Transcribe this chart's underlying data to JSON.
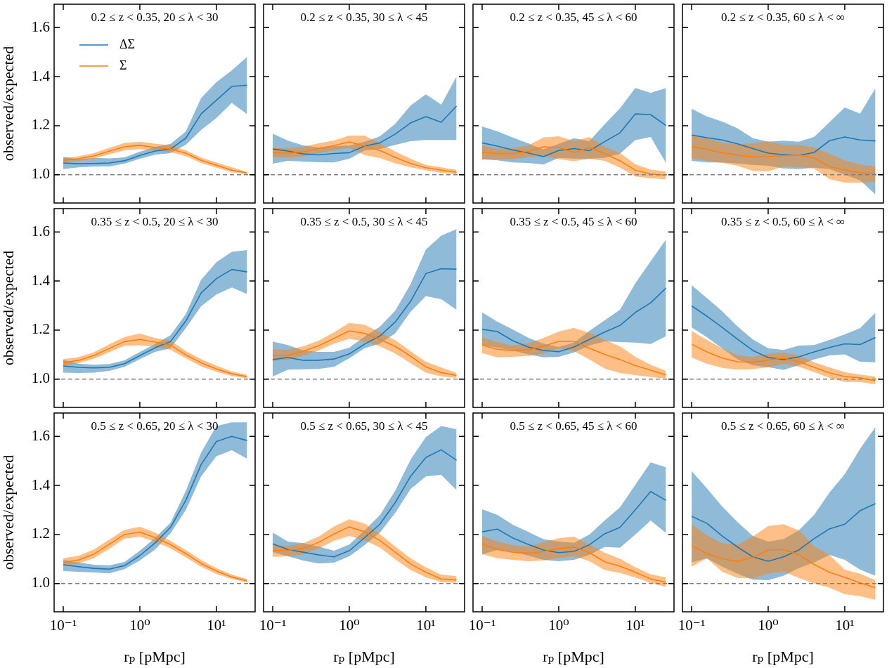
{
  "chart_data": [
    {
      "type": "line",
      "title": "0.2 ≤ z < 0.35, 20 ≤ λ < 30",
      "ylabel": "observed/expected",
      "tick_labels": "y",
      "legend": "top left",
      "log": "x",
      "x": [
        0.1,
        0.158,
        0.251,
        0.398,
        0.631,
        1,
        1.585,
        2.512,
        3.981,
        6.31,
        10,
        15.85,
        25.12
      ],
      "xlim": [
        0.076,
        32
      ],
      "ylim": [
        0.885,
        1.695
      ],
      "xticks": [
        {
          "value": 0.1,
          "label": null
        },
        {
          "value": 1,
          "label": null
        },
        {
          "value": 10,
          "label": null
        }
      ],
      "yticks": [
        {
          "value": 1,
          "label": "1.0"
        },
        {
          "value": 1.2,
          "label": "1.2"
        },
        {
          "value": 1.4,
          "label": "1.4"
        },
        {
          "value": 1.6,
          "label": "1.6"
        }
      ],
      "ref_lines": [
        {
          "axis": "y",
          "value": 1,
          "color": "#808080",
          "line_style": "dashed"
        }
      ],
      "series": [
        {
          "name": "ΔΣ",
          "color": "#1f77b4",
          "values": [
            1.048,
            1.045,
            1.046,
            1.048,
            1.057,
            1.079,
            1.097,
            1.105,
            1.149,
            1.248,
            1.304,
            1.36,
            1.365
          ],
          "lower": [
            1.023,
            1.03,
            1.034,
            1.034,
            1.045,
            1.065,
            1.082,
            1.088,
            1.122,
            1.183,
            1.231,
            1.293,
            1.247
          ],
          "upper": [
            1.073,
            1.063,
            1.069,
            1.067,
            1.071,
            1.094,
            1.113,
            1.126,
            1.176,
            1.313,
            1.377,
            1.425,
            1.48
          ]
        },
        {
          "name": "Σ",
          "color": "#ff7f0e",
          "values": [
            1.059,
            1.065,
            1.077,
            1.096,
            1.114,
            1.12,
            1.111,
            1.105,
            1.088,
            1.059,
            1.039,
            1.019,
            1.007
          ],
          "lower": [
            1.05,
            1.056,
            1.066,
            1.083,
            1.1,
            1.105,
            1.098,
            1.092,
            1.076,
            1.048,
            1.029,
            1.01,
            1.003
          ],
          "upper": [
            1.068,
            1.075,
            1.088,
            1.11,
            1.13,
            1.135,
            1.127,
            1.12,
            1.1,
            1.07,
            1.05,
            1.03,
            1.012
          ]
        }
      ]
    },
    {
      "type": "line",
      "title": "0.2 ≤ z < 0.35, 30 ≤ λ < 45",
      "tick_labels": false,
      "log": "x",
      "x": [
        0.1,
        0.158,
        0.251,
        0.398,
        0.631,
        1,
        1.585,
        2.512,
        3.981,
        6.31,
        10,
        15.85,
        25.12
      ],
      "xlim": [
        0.076,
        32
      ],
      "ylim": [
        0.885,
        1.695
      ],
      "xticks": [
        {
          "value": 0.1,
          "label": null
        },
        {
          "value": 1,
          "label": null
        },
        {
          "value": 10,
          "label": null
        }
      ],
      "yticks": [
        {
          "value": 1,
          "label": null
        },
        {
          "value": 1.2,
          "label": null
        },
        {
          "value": 1.4,
          "label": null
        },
        {
          "value": 1.6,
          "label": null
        }
      ],
      "ref_lines": [
        {
          "axis": "y",
          "value": 1,
          "color": "#808080",
          "line_style": "dashed"
        }
      ],
      "series": [
        {
          "color": "#1f77b4",
          "values": [
            1.105,
            1.097,
            1.085,
            1.081,
            1.087,
            1.09,
            1.117,
            1.13,
            1.166,
            1.211,
            1.237,
            1.214,
            1.28
          ],
          "lower": [
            1.045,
            1.057,
            1.054,
            1.051,
            1.05,
            1.065,
            1.099,
            1.105,
            1.122,
            1.137,
            1.142,
            1.142,
            1.142
          ],
          "upper": [
            1.168,
            1.139,
            1.12,
            1.111,
            1.117,
            1.119,
            1.134,
            1.157,
            1.208,
            1.282,
            1.328,
            1.286,
            1.4
          ]
        },
        {
          "color": "#ff7f0e",
          "values": [
            1.09,
            1.088,
            1.094,
            1.107,
            1.119,
            1.134,
            1.117,
            1.099,
            1.071,
            1.046,
            1.029,
            1.019,
            1.01
          ],
          "lower": [
            1.07,
            1.07,
            1.075,
            1.088,
            1.1,
            1.11,
            1.08,
            1.068,
            1.047,
            1.03,
            1.018,
            1.008,
            1.002
          ],
          "upper": [
            1.108,
            1.108,
            1.115,
            1.128,
            1.14,
            1.16,
            1.16,
            1.128,
            1.095,
            1.065,
            1.04,
            1.03,
            1.02
          ]
        }
      ]
    },
    {
      "type": "line",
      "title": "0.2 ≤ z < 0.35, 45 ≤ λ < 60",
      "tick_labels": false,
      "log": "x",
      "x": [
        0.1,
        0.158,
        0.251,
        0.398,
        0.631,
        1,
        1.585,
        2.512,
        3.981,
        6.31,
        10,
        15.85,
        25.12
      ],
      "xlim": [
        0.076,
        32
      ],
      "ylim": [
        0.885,
        1.695
      ],
      "xticks": [
        {
          "value": 0.1,
          "label": null
        },
        {
          "value": 1,
          "label": null
        },
        {
          "value": 10,
          "label": null
        }
      ],
      "yticks": [
        {
          "value": 1,
          "label": null
        },
        {
          "value": 1.2,
          "label": null
        },
        {
          "value": 1.4,
          "label": null
        },
        {
          "value": 1.6,
          "label": null
        }
      ],
      "ref_lines": [
        {
          "axis": "y",
          "value": 1,
          "color": "#808080",
          "line_style": "dashed"
        }
      ],
      "series": [
        {
          "color": "#1f77b4",
          "values": [
            1.13,
            1.117,
            1.101,
            1.089,
            1.074,
            1.099,
            1.107,
            1.098,
            1.135,
            1.171,
            1.248,
            1.245,
            1.201
          ],
          "lower": [
            1.063,
            1.059,
            1.05,
            1.048,
            1.042,
            1.069,
            1.066,
            1.065,
            1.069,
            1.086,
            1.141,
            1.154,
            1.048
          ],
          "upper": [
            1.197,
            1.177,
            1.152,
            1.128,
            1.103,
            1.126,
            1.149,
            1.137,
            1.206,
            1.271,
            1.354,
            1.334,
            1.354
          ]
        },
        {
          "color": "#ff7f0e",
          "values": [
            1.091,
            1.087,
            1.087,
            1.095,
            1.114,
            1.111,
            1.091,
            1.111,
            1.086,
            1.057,
            1.019,
            1.003,
            0.998
          ],
          "lower": [
            1.062,
            1.063,
            1.063,
            1.072,
            1.077,
            1.063,
            1.055,
            1.065,
            1.057,
            1.029,
            0.993,
            0.986,
            0.981
          ],
          "upper": [
            1.121,
            1.106,
            1.109,
            1.119,
            1.152,
            1.157,
            1.137,
            1.154,
            1.114,
            1.089,
            1.043,
            1.021,
            1.014
          ]
        }
      ]
    },
    {
      "type": "line",
      "title": "0.2 ≤ z < 0.35, 60 ≤ λ < ∞",
      "tick_labels": false,
      "log": "x",
      "x": [
        0.1,
        0.158,
        0.251,
        0.398,
        0.631,
        1,
        1.585,
        2.512,
        3.981,
        6.31,
        10,
        15.85,
        25.12
      ],
      "xlim": [
        0.076,
        32
      ],
      "ylim": [
        0.885,
        1.695
      ],
      "xticks": [
        {
          "value": 0.1,
          "label": null
        },
        {
          "value": 1,
          "label": null
        },
        {
          "value": 10,
          "label": null
        }
      ],
      "yticks": [
        {
          "value": 1,
          "label": null
        },
        {
          "value": 1.2,
          "label": null
        },
        {
          "value": 1.4,
          "label": null
        },
        {
          "value": 1.6,
          "label": null
        }
      ],
      "ref_lines": [
        {
          "axis": "y",
          "value": 1,
          "color": "#808080",
          "line_style": "dashed"
        }
      ],
      "series": [
        {
          "color": "#1f77b4",
          "values": [
            1.162,
            1.151,
            1.142,
            1.126,
            1.107,
            1.088,
            1.082,
            1.079,
            1.091,
            1.139,
            1.154,
            1.142,
            1.138
          ],
          "lower": [
            1.057,
            1.05,
            1.05,
            1.046,
            1.04,
            1.037,
            1.026,
            1.023,
            1.029,
            1.023,
            1.0,
            0.977,
            0.92
          ],
          "upper": [
            1.269,
            1.238,
            1.217,
            1.189,
            1.149,
            1.135,
            1.139,
            1.135,
            1.154,
            1.214,
            1.274,
            1.249,
            1.352
          ]
        },
        {
          "color": "#ff7f0e",
          "values": [
            1.115,
            1.103,
            1.09,
            1.08,
            1.072,
            1.074,
            1.078,
            1.08,
            1.069,
            1.034,
            1.019,
            1.009,
            1.005
          ],
          "lower": [
            1.066,
            1.057,
            1.048,
            1.037,
            1.016,
            1.014,
            1.034,
            1.031,
            1.025,
            0.982,
            0.968,
            0.968,
            0.971
          ],
          "upper": [
            1.166,
            1.149,
            1.131,
            1.123,
            1.128,
            1.137,
            1.122,
            1.122,
            1.112,
            1.086,
            1.059,
            1.042,
            1.034
          ]
        }
      ]
    },
    {
      "type": "line",
      "title": "0.35 ≤ z < 0.5, 20 ≤ λ < 30",
      "ylabel": "observed/expected",
      "tick_labels": "y",
      "log": "x",
      "x": [
        0.1,
        0.158,
        0.251,
        0.398,
        0.631,
        1,
        1.585,
        2.512,
        3.981,
        6.31,
        10,
        15.85,
        25.12
      ],
      "xlim": [
        0.076,
        32
      ],
      "ylim": [
        0.885,
        1.695
      ],
      "xticks": [
        {
          "value": 0.1,
          "label": null
        },
        {
          "value": 1,
          "label": null
        },
        {
          "value": 10,
          "label": null
        }
      ],
      "yticks": [
        {
          "value": 1,
          "label": "1.0"
        },
        {
          "value": 1.2,
          "label": "1.2"
        },
        {
          "value": 1.4,
          "label": "1.4"
        },
        {
          "value": 1.6,
          "label": "1.6"
        }
      ],
      "ref_lines": [
        {
          "axis": "y",
          "value": 1,
          "color": "#808080",
          "line_style": "dashed"
        }
      ],
      "series": [
        {
          "color": "#1f77b4",
          "values": [
            1.054,
            1.048,
            1.046,
            1.048,
            1.063,
            1.096,
            1.128,
            1.153,
            1.237,
            1.351,
            1.41,
            1.447,
            1.437
          ],
          "lower": [
            1.027,
            1.025,
            1.027,
            1.034,
            1.05,
            1.082,
            1.111,
            1.126,
            1.208,
            1.297,
            1.345,
            1.374,
            1.347
          ],
          "upper": [
            1.079,
            1.063,
            1.059,
            1.062,
            1.077,
            1.111,
            1.143,
            1.179,
            1.265,
            1.405,
            1.477,
            1.519,
            1.526
          ]
        },
        {
          "color": "#ff7f0e",
          "values": [
            1.067,
            1.077,
            1.096,
            1.125,
            1.153,
            1.162,
            1.151,
            1.139,
            1.099,
            1.067,
            1.042,
            1.022,
            1.01
          ],
          "lower": [
            1.055,
            1.065,
            1.083,
            1.11,
            1.136,
            1.138,
            1.133,
            1.12,
            1.085,
            1.052,
            1.03,
            1.013,
            1.003
          ],
          "upper": [
            1.082,
            1.09,
            1.11,
            1.142,
            1.172,
            1.186,
            1.168,
            1.157,
            1.115,
            1.082,
            1.055,
            1.032,
            1.018
          ]
        }
      ]
    },
    {
      "type": "line",
      "title": "0.35 ≤ z < 0.5, 30 ≤ λ < 45",
      "tick_labels": false,
      "log": "x",
      "x": [
        0.1,
        0.158,
        0.251,
        0.398,
        0.631,
        1,
        1.585,
        2.512,
        3.981,
        6.31,
        10,
        15.85,
        25.12
      ],
      "xlim": [
        0.076,
        32
      ],
      "ylim": [
        0.885,
        1.695
      ],
      "xticks": [
        {
          "value": 0.1,
          "label": null
        },
        {
          "value": 1,
          "label": null
        },
        {
          "value": 10,
          "label": null
        }
      ],
      "yticks": [
        {
          "value": 1,
          "label": null
        },
        {
          "value": 1.2,
          "label": null
        },
        {
          "value": 1.4,
          "label": null
        },
        {
          "value": 1.6,
          "label": null
        }
      ],
      "ref_lines": [
        {
          "axis": "y",
          "value": 1,
          "color": "#808080",
          "line_style": "dashed"
        }
      ],
      "series": [
        {
          "color": "#1f77b4",
          "values": [
            1.08,
            1.088,
            1.077,
            1.077,
            1.082,
            1.103,
            1.143,
            1.176,
            1.233,
            1.317,
            1.43,
            1.45,
            1.448
          ],
          "lower": [
            1.011,
            1.039,
            1.04,
            1.042,
            1.05,
            1.085,
            1.126,
            1.145,
            1.187,
            1.274,
            1.339,
            1.326,
            1.283
          ],
          "upper": [
            1.153,
            1.139,
            1.117,
            1.111,
            1.111,
            1.128,
            1.174,
            1.214,
            1.279,
            1.387,
            1.528,
            1.585,
            1.611
          ]
        },
        {
          "color": "#ff7f0e",
          "values": [
            1.096,
            1.097,
            1.114,
            1.136,
            1.166,
            1.197,
            1.187,
            1.162,
            1.134,
            1.094,
            1.05,
            1.027,
            1.015
          ],
          "lower": [
            1.074,
            1.079,
            1.096,
            1.117,
            1.145,
            1.165,
            1.153,
            1.134,
            1.105,
            1.065,
            1.027,
            1.011,
            1.005
          ],
          "upper": [
            1.122,
            1.12,
            1.134,
            1.157,
            1.191,
            1.229,
            1.222,
            1.191,
            1.159,
            1.114,
            1.071,
            1.048,
            1.025
          ]
        }
      ]
    },
    {
      "type": "line",
      "title": "0.35 ≤ z < 0.5, 45 ≤ λ < 60",
      "tick_labels": false,
      "log": "x",
      "x": [
        0.1,
        0.158,
        0.251,
        0.398,
        0.631,
        1,
        1.585,
        2.512,
        3.981,
        6.31,
        10,
        15.85,
        25.12
      ],
      "xlim": [
        0.076,
        32
      ],
      "ylim": [
        0.885,
        1.695
      ],
      "xticks": [
        {
          "value": 0.1,
          "label": null
        },
        {
          "value": 1,
          "label": null
        },
        {
          "value": 10,
          "label": null
        }
      ],
      "yticks": [
        {
          "value": 1,
          "label": null
        },
        {
          "value": 1.2,
          "label": null
        },
        {
          "value": 1.4,
          "label": null
        },
        {
          "value": 1.6,
          "label": null
        }
      ],
      "ref_lines": [
        {
          "axis": "y",
          "value": 1,
          "color": "#808080",
          "line_style": "dashed"
        }
      ],
      "series": [
        {
          "color": "#1f77b4",
          "values": [
            1.203,
            1.194,
            1.157,
            1.131,
            1.117,
            1.112,
            1.131,
            1.162,
            1.192,
            1.219,
            1.272,
            1.311,
            1.371
          ],
          "lower": [
            1.139,
            1.128,
            1.117,
            1.101,
            1.089,
            1.091,
            1.109,
            1.137,
            1.154,
            1.151,
            1.149,
            1.143,
            1.175
          ],
          "upper": [
            1.272,
            1.234,
            1.203,
            1.169,
            1.145,
            1.131,
            1.149,
            1.197,
            1.24,
            1.283,
            1.391,
            1.48,
            1.569
          ]
        },
        {
          "color": "#ff7f0e",
          "values": [
            1.139,
            1.122,
            1.117,
            1.12,
            1.134,
            1.154,
            1.154,
            1.126,
            1.101,
            1.08,
            1.055,
            1.037,
            1.017
          ],
          "lower": [
            1.106,
            1.089,
            1.091,
            1.095,
            1.105,
            1.126,
            1.114,
            1.08,
            1.043,
            1.025,
            1.017,
            1.009,
            1.003
          ],
          "upper": [
            1.171,
            1.151,
            1.137,
            1.146,
            1.168,
            1.194,
            1.209,
            1.189,
            1.16,
            1.134,
            1.091,
            1.059,
            1.034
          ]
        }
      ]
    },
    {
      "type": "line",
      "title": "0.35 ≤ z < 0.5, 60 ≤ λ < ∞",
      "tick_labels": false,
      "log": "x",
      "x": [
        0.1,
        0.158,
        0.251,
        0.398,
        0.631,
        1,
        1.585,
        2.512,
        3.981,
        6.31,
        10,
        15.85,
        25.12
      ],
      "xlim": [
        0.076,
        32
      ],
      "ylim": [
        0.885,
        1.695
      ],
      "xticks": [
        {
          "value": 0.1,
          "label": null
        },
        {
          "value": 1,
          "label": null
        },
        {
          "value": 10,
          "label": null
        }
      ],
      "yticks": [
        {
          "value": 1,
          "label": null
        },
        {
          "value": 1.2,
          "label": null
        },
        {
          "value": 1.4,
          "label": null
        },
        {
          "value": 1.6,
          "label": null
        }
      ],
      "ref_lines": [
        {
          "axis": "y",
          "value": 1,
          "color": "#808080",
          "line_style": "dashed"
        }
      ],
      "series": [
        {
          "color": "#1f77b4",
          "values": [
            1.299,
            1.257,
            1.211,
            1.163,
            1.117,
            1.088,
            1.08,
            1.091,
            1.111,
            1.129,
            1.144,
            1.141,
            1.17
          ],
          "lower": [
            1.211,
            1.171,
            1.126,
            1.08,
            1.057,
            1.049,
            1.038,
            1.057,
            1.08,
            1.097,
            1.101,
            1.071,
            1.069
          ],
          "upper": [
            1.383,
            1.331,
            1.277,
            1.215,
            1.162,
            1.126,
            1.119,
            1.137,
            1.139,
            1.16,
            1.183,
            1.208,
            1.271
          ]
        },
        {
          "color": "#ff7f0e",
          "values": [
            1.143,
            1.111,
            1.086,
            1.071,
            1.069,
            1.078,
            1.086,
            1.072,
            1.048,
            1.026,
            1.011,
            1.006,
            0.994
          ],
          "lower": [
            1.088,
            1.063,
            1.046,
            1.039,
            1.041,
            1.048,
            1.063,
            1.051,
            1.029,
            1.006,
            0.989,
            0.989,
            0.979
          ],
          "upper": [
            1.197,
            1.16,
            1.126,
            1.097,
            1.091,
            1.103,
            1.109,
            1.097,
            1.069,
            1.048,
            1.029,
            1.019,
            1.011
          ]
        }
      ]
    },
    {
      "type": "line",
      "title": "0.5 ≤ z < 0.65, 20 ≤ λ < 30",
      "xlabel": "rₚ [pMpc]",
      "ylabel": "observed/expected",
      "log": "x",
      "x": [
        0.1,
        0.158,
        0.251,
        0.398,
        0.631,
        1,
        1.585,
        2.512,
        3.981,
        6.31,
        10,
        15.85,
        25.12
      ],
      "xlim": [
        0.076,
        32
      ],
      "ylim": [
        0.885,
        1.695
      ],
      "xticks": [
        {
          "value": 0.1,
          "label": "10⁻¹"
        },
        {
          "value": 1,
          "label": "10⁰"
        },
        {
          "value": 10,
          "label": "10¹"
        }
      ],
      "yticks": [
        {
          "value": 1,
          "label": "1.0"
        },
        {
          "value": 1.2,
          "label": "1.2"
        },
        {
          "value": 1.4,
          "label": "1.4"
        },
        {
          "value": 1.6,
          "label": "1.6"
        }
      ],
      "ref_lines": [
        {
          "axis": "y",
          "value": 1,
          "color": "#808080",
          "line_style": "dashed"
        }
      ],
      "series": [
        {
          "color": "#1f77b4",
          "values": [
            1.077,
            1.069,
            1.062,
            1.059,
            1.073,
            1.114,
            1.166,
            1.229,
            1.339,
            1.485,
            1.579,
            1.6,
            1.583
          ],
          "lower": [
            1.051,
            1.048,
            1.045,
            1.042,
            1.059,
            1.094,
            1.139,
            1.205,
            1.299,
            1.437,
            1.519,
            1.543,
            1.509
          ],
          "upper": [
            1.097,
            1.086,
            1.077,
            1.074,
            1.088,
            1.134,
            1.187,
            1.248,
            1.377,
            1.534,
            1.642,
            1.657,
            1.657
          ]
        },
        {
          "color": "#ff7f0e",
          "values": [
            1.086,
            1.096,
            1.12,
            1.16,
            1.2,
            1.21,
            1.187,
            1.159,
            1.122,
            1.082,
            1.051,
            1.027,
            1.01
          ],
          "lower": [
            1.074,
            1.082,
            1.103,
            1.142,
            1.183,
            1.191,
            1.17,
            1.143,
            1.107,
            1.069,
            1.039,
            1.019,
            1.005
          ],
          "upper": [
            1.103,
            1.113,
            1.139,
            1.179,
            1.219,
            1.231,
            1.208,
            1.174,
            1.137,
            1.096,
            1.063,
            1.037,
            1.019
          ]
        }
      ]
    },
    {
      "type": "line",
      "title": "0.5 ≤ z < 0.65, 30 ≤ λ < 45",
      "xlabel": "rₚ [pMpc]",
      "tick_labels": "x",
      "log": "x",
      "x": [
        0.1,
        0.158,
        0.251,
        0.398,
        0.631,
        1,
        1.585,
        2.512,
        3.981,
        6.31,
        10,
        15.85,
        25.12
      ],
      "xlim": [
        0.076,
        32
      ],
      "ylim": [
        0.885,
        1.695
      ],
      "xticks": [
        {
          "value": 0.1,
          "label": "10⁻¹"
        },
        {
          "value": 1,
          "label": "10⁰"
        },
        {
          "value": 10,
          "label": "10¹"
        }
      ],
      "yticks": [
        {
          "value": 1,
          "label": null
        },
        {
          "value": 1.2,
          "label": null
        },
        {
          "value": 1.4,
          "label": null
        },
        {
          "value": 1.6,
          "label": null
        }
      ],
      "ref_lines": [
        {
          "axis": "y",
          "value": 1,
          "color": "#808080",
          "line_style": "dashed"
        }
      ],
      "series": [
        {
          "color": "#1f77b4",
          "values": [
            1.162,
            1.139,
            1.128,
            1.117,
            1.109,
            1.134,
            1.187,
            1.242,
            1.33,
            1.437,
            1.514,
            1.545,
            1.503
          ],
          "lower": [
            1.128,
            1.111,
            1.094,
            1.082,
            1.085,
            1.111,
            1.157,
            1.208,
            1.288,
            1.385,
            1.437,
            1.443,
            1.381
          ],
          "upper": [
            1.208,
            1.171,
            1.165,
            1.151,
            1.134,
            1.159,
            1.217,
            1.279,
            1.379,
            1.505,
            1.597,
            1.642,
            1.629
          ]
        },
        {
          "color": "#ff7f0e",
          "values": [
            1.134,
            1.136,
            1.143,
            1.168,
            1.202,
            1.231,
            1.211,
            1.176,
            1.128,
            1.08,
            1.046,
            1.019,
            1.015
          ],
          "lower": [
            1.109,
            1.111,
            1.119,
            1.143,
            1.174,
            1.194,
            1.176,
            1.147,
            1.099,
            1.055,
            1.025,
            1.006,
            1.003
          ],
          "upper": [
            1.157,
            1.154,
            1.165,
            1.191,
            1.233,
            1.262,
            1.245,
            1.202,
            1.151,
            1.103,
            1.066,
            1.037,
            1.03
          ]
        }
      ]
    },
    {
      "type": "line",
      "title": "0.5 ≤ z < 0.65, 45 ≤ λ < 60",
      "xlabel": "rₚ [pMpc]",
      "tick_labels": "x",
      "log": "x",
      "x": [
        0.1,
        0.158,
        0.251,
        0.398,
        0.631,
        1,
        1.585,
        2.512,
        3.981,
        6.31,
        10,
        15.85,
        25.12
      ],
      "xlim": [
        0.076,
        32
      ],
      "ylim": [
        0.885,
        1.695
      ],
      "xticks": [
        {
          "value": 0.1,
          "label": "10⁻¹"
        },
        {
          "value": 1,
          "label": "10⁰"
        },
        {
          "value": 10,
          "label": "10¹"
        }
      ],
      "yticks": [
        {
          "value": 1,
          "label": null
        },
        {
          "value": 1.2,
          "label": null
        },
        {
          "value": 1.4,
          "label": null
        },
        {
          "value": 1.6,
          "label": null
        }
      ],
      "ref_lines": [
        {
          "axis": "y",
          "value": 1,
          "color": "#808080",
          "line_style": "dashed"
        }
      ],
      "series": [
        {
          "color": "#1f77b4",
          "values": [
            1.211,
            1.222,
            1.186,
            1.16,
            1.137,
            1.126,
            1.131,
            1.158,
            1.203,
            1.229,
            1.301,
            1.375,
            1.339
          ],
          "lower": [
            1.12,
            1.137,
            1.131,
            1.114,
            1.097,
            1.091,
            1.097,
            1.117,
            1.149,
            1.146,
            1.2,
            1.257,
            1.206
          ],
          "upper": [
            1.303,
            1.28,
            1.24,
            1.211,
            1.181,
            1.171,
            1.166,
            1.2,
            1.257,
            1.311,
            1.402,
            1.494,
            1.474
          ]
        },
        {
          "color": "#ff7f0e",
          "values": [
            1.162,
            1.139,
            1.128,
            1.123,
            1.131,
            1.143,
            1.149,
            1.126,
            1.089,
            1.071,
            1.046,
            1.019,
            1.006
          ],
          "lower": [
            1.12,
            1.103,
            1.097,
            1.091,
            1.094,
            1.105,
            1.112,
            1.091,
            1.055,
            1.043,
            1.025,
            1.002,
            0.986
          ],
          "upper": [
            1.194,
            1.171,
            1.157,
            1.151,
            1.169,
            1.185,
            1.191,
            1.16,
            1.126,
            1.101,
            1.067,
            1.038,
            1.025
          ]
        }
      ]
    },
    {
      "type": "line",
      "title": "0.5 ≤ z < 0.65, 60 ≤ λ < ∞",
      "xlabel": "rₚ [pMpc]",
      "tick_labels": "x",
      "log": "x",
      "x": [
        0.1,
        0.158,
        0.251,
        0.398,
        0.631,
        1,
        1.585,
        2.512,
        3.981,
        6.31,
        10,
        15.85,
        25.12
      ],
      "xlim": [
        0.076,
        32
      ],
      "ylim": [
        0.885,
        1.695
      ],
      "xticks": [
        {
          "value": 0.1,
          "label": "10⁻¹"
        },
        {
          "value": 1,
          "label": "10⁰"
        },
        {
          "value": 10,
          "label": "10¹"
        }
      ],
      "yticks": [
        {
          "value": 1,
          "label": null
        },
        {
          "value": 1.2,
          "label": null
        },
        {
          "value": 1.4,
          "label": null
        },
        {
          "value": 1.6,
          "label": null
        }
      ],
      "ref_lines": [
        {
          "axis": "y",
          "value": 1,
          "color": "#808080",
          "line_style": "dashed"
        }
      ],
      "series": [
        {
          "color": "#1f77b4",
          "values": [
            1.274,
            1.246,
            1.194,
            1.149,
            1.109,
            1.091,
            1.109,
            1.137,
            1.183,
            1.223,
            1.242,
            1.297,
            1.326
          ],
          "lower": [
            1.086,
            1.103,
            1.069,
            1.04,
            1.016,
            1.014,
            1.032,
            1.063,
            1.086,
            1.117,
            1.097,
            1.057,
            1.032
          ],
          "upper": [
            1.459,
            1.389,
            1.314,
            1.251,
            1.194,
            1.171,
            1.181,
            1.217,
            1.28,
            1.371,
            1.446,
            1.549,
            1.638
          ]
        },
        {
          "color": "#ff7f0e",
          "values": [
            1.155,
            1.122,
            1.101,
            1.09,
            1.107,
            1.137,
            1.139,
            1.118,
            1.078,
            1.046,
            1.025,
            1.003,
            0.983
          ],
          "lower": [
            1.069,
            1.103,
            1.048,
            1.023,
            1.021,
            1.04,
            1.048,
            1.023,
            1.0,
            0.983,
            0.957,
            0.949,
            0.934
          ],
          "upper": [
            1.242,
            1.197,
            1.165,
            1.158,
            1.192,
            1.234,
            1.242,
            1.217,
            1.152,
            1.117,
            1.057,
            1.04,
            1.014
          ]
        }
      ]
    }
  ]
}
